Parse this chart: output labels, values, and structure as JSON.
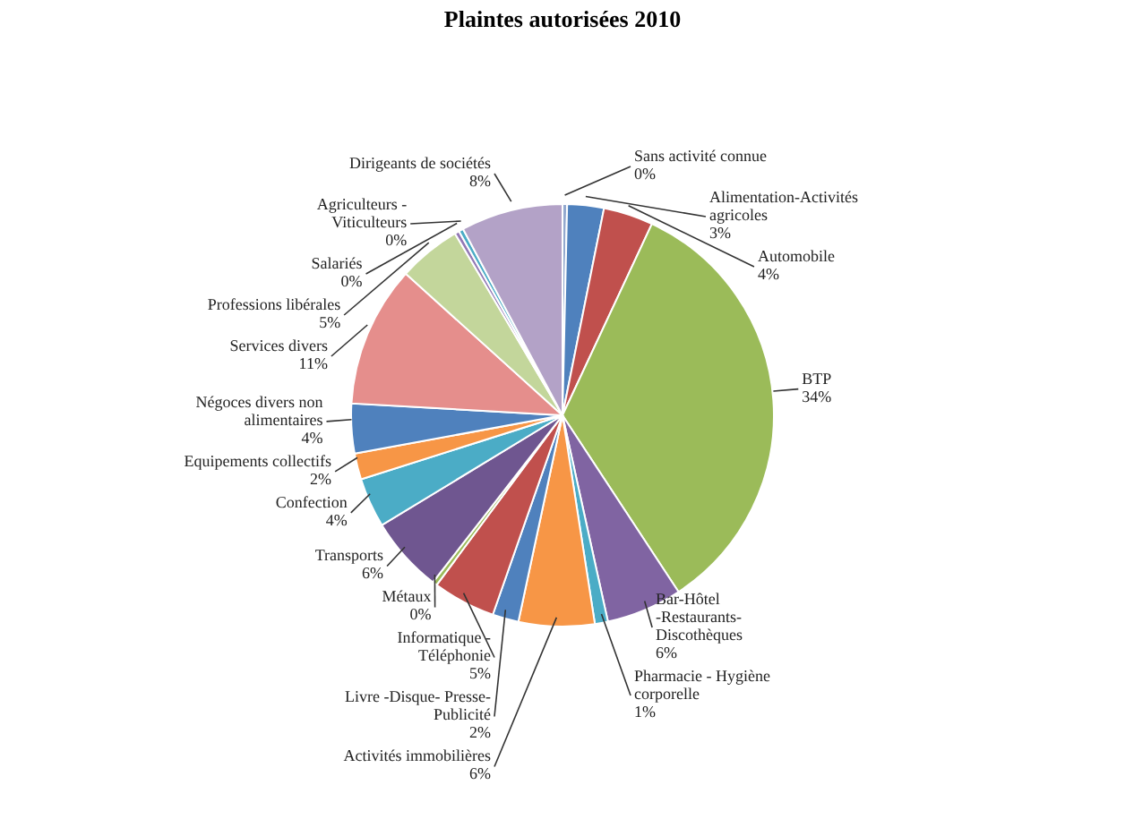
{
  "chart_data": {
    "type": "pie",
    "title": "Plaintes autorisées 2010",
    "categories": [
      "Sans activité connue",
      "Alimentation-Activités agricoles",
      "Automobile",
      "BTP",
      "Bar-Hôtel -Restaurants- Discothèques",
      "Pharmacie - Hygiène corporelle",
      "Activités immobilières",
      "Livre -Disque- Presse-Publicité",
      "Informatique - Téléphonie",
      "Métaux",
      "Transports",
      "Confection",
      "Equipements collectifs",
      "Négoces divers non alimentaires",
      "Services divers",
      "Professions libérales",
      "Salariés",
      "Agriculteurs - Viticulteurs",
      "Dirigeants de sociétés"
    ],
    "values": [
      0.35,
      2.8,
      3.8,
      33.8,
      5.8,
      1.0,
      5.8,
      2.0,
      4.8,
      0.35,
      5.8,
      3.8,
      2.0,
      3.8,
      10.8,
      4.8,
      0.35,
      0.35,
      7.8
    ],
    "value_labels": [
      "0%",
      "3%",
      "4%",
      "34%",
      "6%",
      "1%",
      "6%",
      "2%",
      "5%",
      "0%",
      "6%",
      "4%",
      "2%",
      "4%",
      "11%",
      "5%",
      "0%",
      "0%",
      "8%"
    ],
    "colors": [
      "#93a9cf",
      "#4f81bd",
      "#c0504d",
      "#9bbb59",
      "#8064a2",
      "#4bacc6",
      "#f79646",
      "#4f81bd",
      "#c0504d",
      "#9bbb59",
      "#6f5690",
      "#4bacc6",
      "#f79646",
      "#4f81bd",
      "#e58e8c",
      "#c3d69b",
      "#9278b5",
      "#4bacc6",
      "#b3a2c7"
    ]
  }
}
